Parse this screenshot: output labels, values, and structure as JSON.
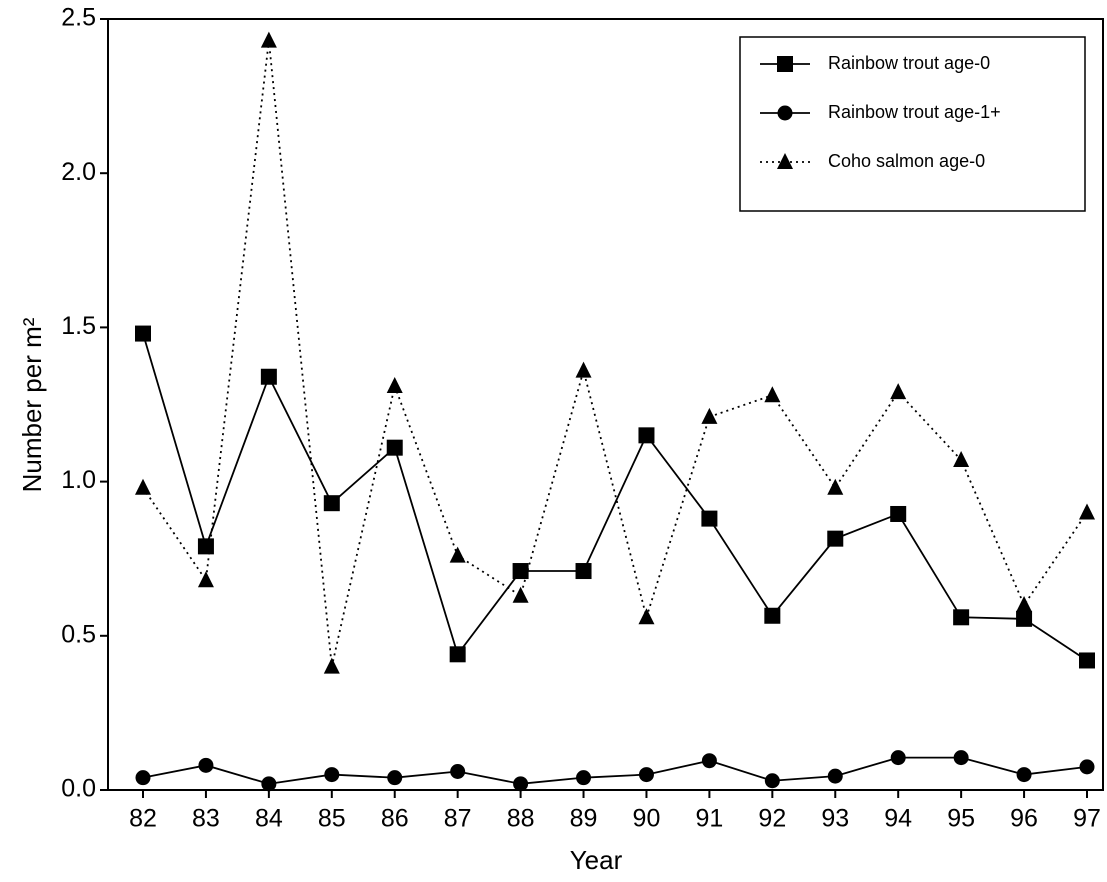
{
  "chart_data": {
    "type": "line",
    "x_label": "Year",
    "y_label": "Number per m²",
    "categories": [
      "82",
      "83",
      "84",
      "85",
      "86",
      "87",
      "88",
      "89",
      "90",
      "91",
      "92",
      "93",
      "94",
      "95",
      "96",
      "97"
    ],
    "series": [
      {
        "name": "Rainbow trout age-0",
        "color": "#000000",
        "marker": "square",
        "linestyle": "solid",
        "values": [
          1.48,
          0.79,
          1.34,
          0.93,
          1.11,
          0.44,
          0.71,
          0.71,
          1.15,
          0.88,
          0.565,
          0.815,
          0.895,
          0.56,
          0.555,
          0.42
        ]
      },
      {
        "name": "Rainbow trout age-1+",
        "color": "#000000",
        "marker": "circle",
        "linestyle": "solid",
        "values": [
          0.04,
          0.08,
          0.02,
          0.05,
          0.04,
          0.06,
          0.02,
          0.04,
          0.05,
          0.095,
          0.03,
          0.045,
          0.105,
          0.105,
          0.05,
          0.075
        ]
      },
      {
        "name": "Coho salmon age-0",
        "color": "#000000",
        "marker": "triangle",
        "linestyle": "dotted",
        "values": [
          0.98,
          0.68,
          2.43,
          0.4,
          1.31,
          0.76,
          0.63,
          1.36,
          0.56,
          1.21,
          1.28,
          0.98,
          1.29,
          1.07,
          0.6,
          0.9
        ]
      }
    ],
    "ylim": [
      0,
      2.5
    ],
    "yticks": [
      {
        "value": 0,
        "label": "0.0"
      },
      0.5,
      {
        "value": 1,
        "label": "1.0"
      },
      1.5,
      {
        "value": 2,
        "label": "2.0"
      },
      2.5
    ],
    "grid": false,
    "legend": "upper right"
  }
}
